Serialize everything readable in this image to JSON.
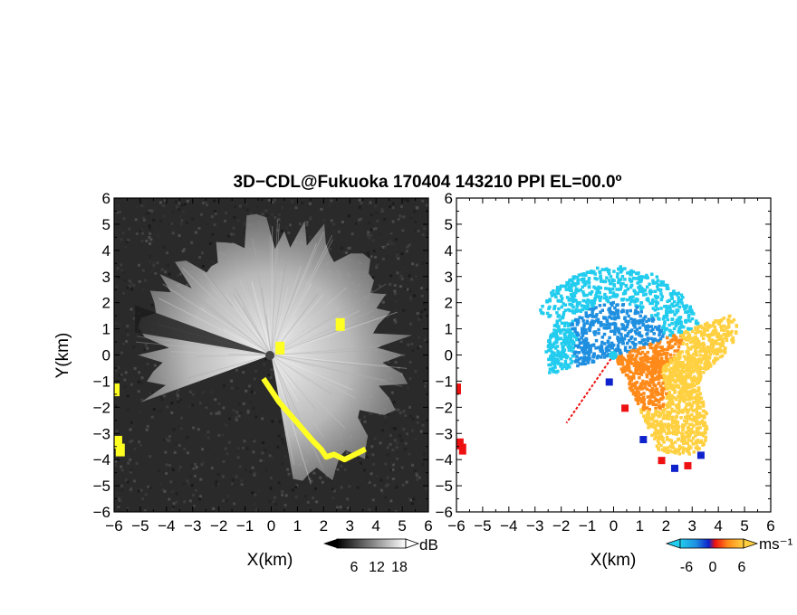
{
  "title": "3D−CDL@Fukuoka 170404 143210 PPI EL=00.0º",
  "colors": {
    "snr_background": "#2a2a2a",
    "snr_echo": "#d8d8d8",
    "snr_flag": "#ffff22",
    "velocity_background": "#ffffff",
    "velocity_negative": "#1f8fe0",
    "velocity_negative_light": "#22ccee",
    "velocity_positive": "#ff8a1a",
    "velocity_positive_light": "#ffd040",
    "velocity_edge_blue": "#1022cc",
    "velocity_edge_red": "#ee1111"
  },
  "chart_data": [
    {
      "type": "heatmap",
      "name": "snr-ppi",
      "xlabel": "X(km)",
      "ylabel": "Y(km)",
      "xlim": [
        -6,
        6
      ],
      "ylim": [
        -6,
        6
      ],
      "xticks": [
        -6,
        -5,
        -4,
        -3,
        -2,
        -1,
        0,
        1,
        2,
        3,
        4,
        5,
        6
      ],
      "yticks": [
        -6,
        -5,
        -4,
        -3,
        -2,
        -1,
        0,
        1,
        2,
        3,
        4,
        5,
        6
      ],
      "colorbar": {
        "unit": "dB",
        "ticks": [
          6,
          12,
          18
        ],
        "scheme": "grayscale"
      },
      "echo_sector_deg": [
        -80,
        200
      ],
      "echo_range_km": 5.2,
      "flagged_region": [
        [
          -0.3,
          -0.9
        ],
        [
          0.3,
          -1.8
        ],
        [
          1,
          -2.6
        ],
        [
          1.6,
          -3.3
        ],
        [
          1.9,
          -3.6
        ],
        [
          2.1,
          -3.9
        ],
        [
          2.4,
          -3.8
        ],
        [
          2.8,
          -4.0
        ],
        [
          3.2,
          -3.8
        ],
        [
          3.6,
          -3.6
        ]
      ]
    },
    {
      "type": "heatmap",
      "name": "doppler-velocity-ppi",
      "xlabel": "X(km)",
      "ylabel": "",
      "xlim": [
        -6,
        6
      ],
      "ylim": [
        -6,
        6
      ],
      "xticks": [
        -6,
        -5,
        -4,
        -3,
        -2,
        -1,
        0,
        1,
        2,
        3,
        4,
        5,
        6
      ],
      "yticks": [
        -6,
        -5,
        -4,
        -3,
        -2,
        -1,
        0,
        1,
        2,
        3,
        4,
        5,
        6
      ],
      "colorbar": {
        "unit": "ms⁻¹",
        "ticks": [
          -6,
          0,
          6
        ],
        "scheme": "blue-red-orange"
      },
      "negative_region_deg": [
        20,
        195
      ],
      "positive_region_deg": [
        -65,
        20
      ],
      "echo_range_km": 4.8
    }
  ]
}
